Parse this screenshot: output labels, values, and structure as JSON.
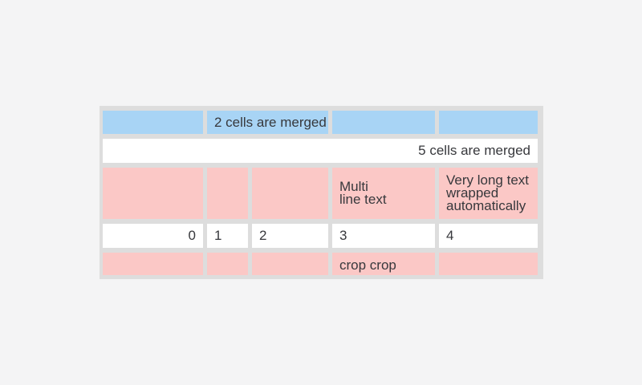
{
  "colors": {
    "page_bg": "#f4f4f5",
    "table_grid_bg": "#dddddd",
    "cell_blue": "#a8d4f5",
    "cell_pink": "#fbc8c6",
    "cell_white": "#ffffff",
    "text": "#37383c"
  },
  "table": {
    "rows": [
      {
        "cells": [
          {
            "text": ""
          },
          {
            "text": "2 cells are merged"
          },
          {
            "text": ""
          },
          {
            "text": ""
          }
        ]
      },
      {
        "cells": [
          {
            "text": "5 cells are merged"
          }
        ]
      },
      {
        "cells": [
          {
            "text": ""
          },
          {
            "text": ""
          },
          {
            "text": ""
          },
          {
            "text": "Multi\nline text"
          },
          {
            "text": "Very long text\nwrapped\nautomatically"
          }
        ]
      },
      {
        "cells": [
          {
            "text": "0"
          },
          {
            "text": "1"
          },
          {
            "text": "2"
          },
          {
            "text": "3"
          },
          {
            "text": "4"
          }
        ]
      },
      {
        "cells": [
          {
            "text": ""
          },
          {
            "text": ""
          },
          {
            "text": ""
          },
          {
            "text": "crop crop\ncrop crop"
          },
          {
            "text": ""
          }
        ]
      }
    ]
  }
}
